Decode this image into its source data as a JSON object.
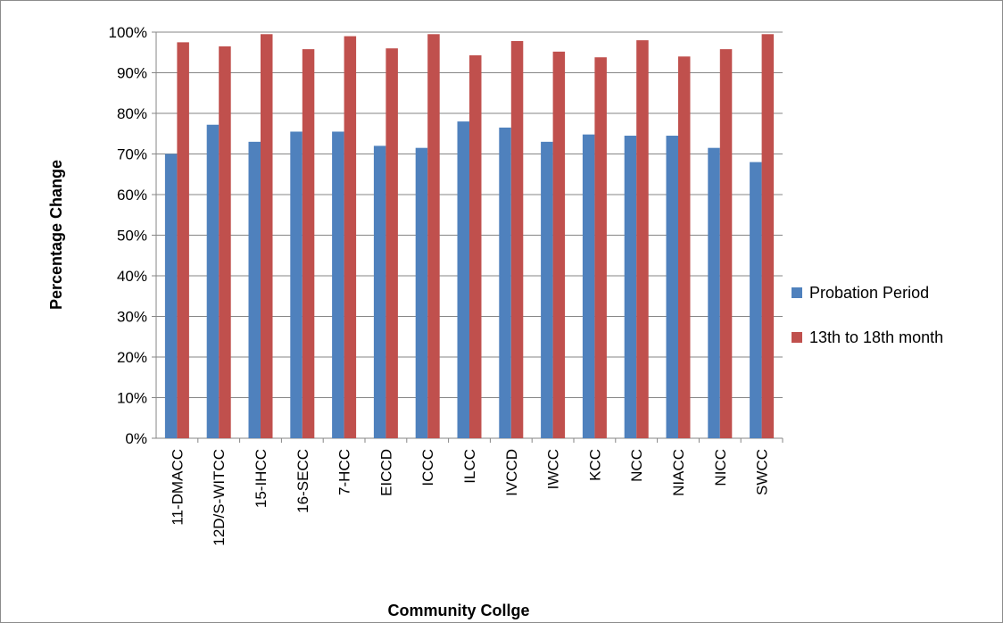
{
  "chart_data": {
    "type": "bar",
    "title": "",
    "xlabel": "Community Collge",
    "ylabel": "Percentage Change",
    "ylim": [
      0,
      100
    ],
    "y_ticks": [
      "0%",
      "10%",
      "20%",
      "30%",
      "40%",
      "50%",
      "60%",
      "70%",
      "80%",
      "90%",
      "100%"
    ],
    "grid": "horizontal",
    "legend_position": "right",
    "categories": [
      "11-DMACC",
      "12D/S-WITCC",
      "15-IHCC",
      "16-SECC",
      "7-HCC",
      "EICCD",
      "ICCC",
      "ILCC",
      "IVCCD",
      "IWCC",
      "KCC",
      "NCC",
      "NIACC",
      "NICC",
      "SWCC"
    ],
    "series": [
      {
        "name": "Probation Period",
        "color": "#4f81bd",
        "values": [
          70,
          77.2,
          73,
          75.5,
          75.5,
          72,
          71.5,
          78,
          76.5,
          73,
          74.8,
          74.5,
          74.5,
          71.5,
          68
        ]
      },
      {
        "name": "13th to 18th month",
        "color": "#c0504d",
        "values": [
          97.5,
          96.5,
          99.5,
          95.8,
          99,
          96,
          99.5,
          94.3,
          97.8,
          95.2,
          93.8,
          98,
          94,
          95.8,
          99.5
        ]
      }
    ]
  }
}
